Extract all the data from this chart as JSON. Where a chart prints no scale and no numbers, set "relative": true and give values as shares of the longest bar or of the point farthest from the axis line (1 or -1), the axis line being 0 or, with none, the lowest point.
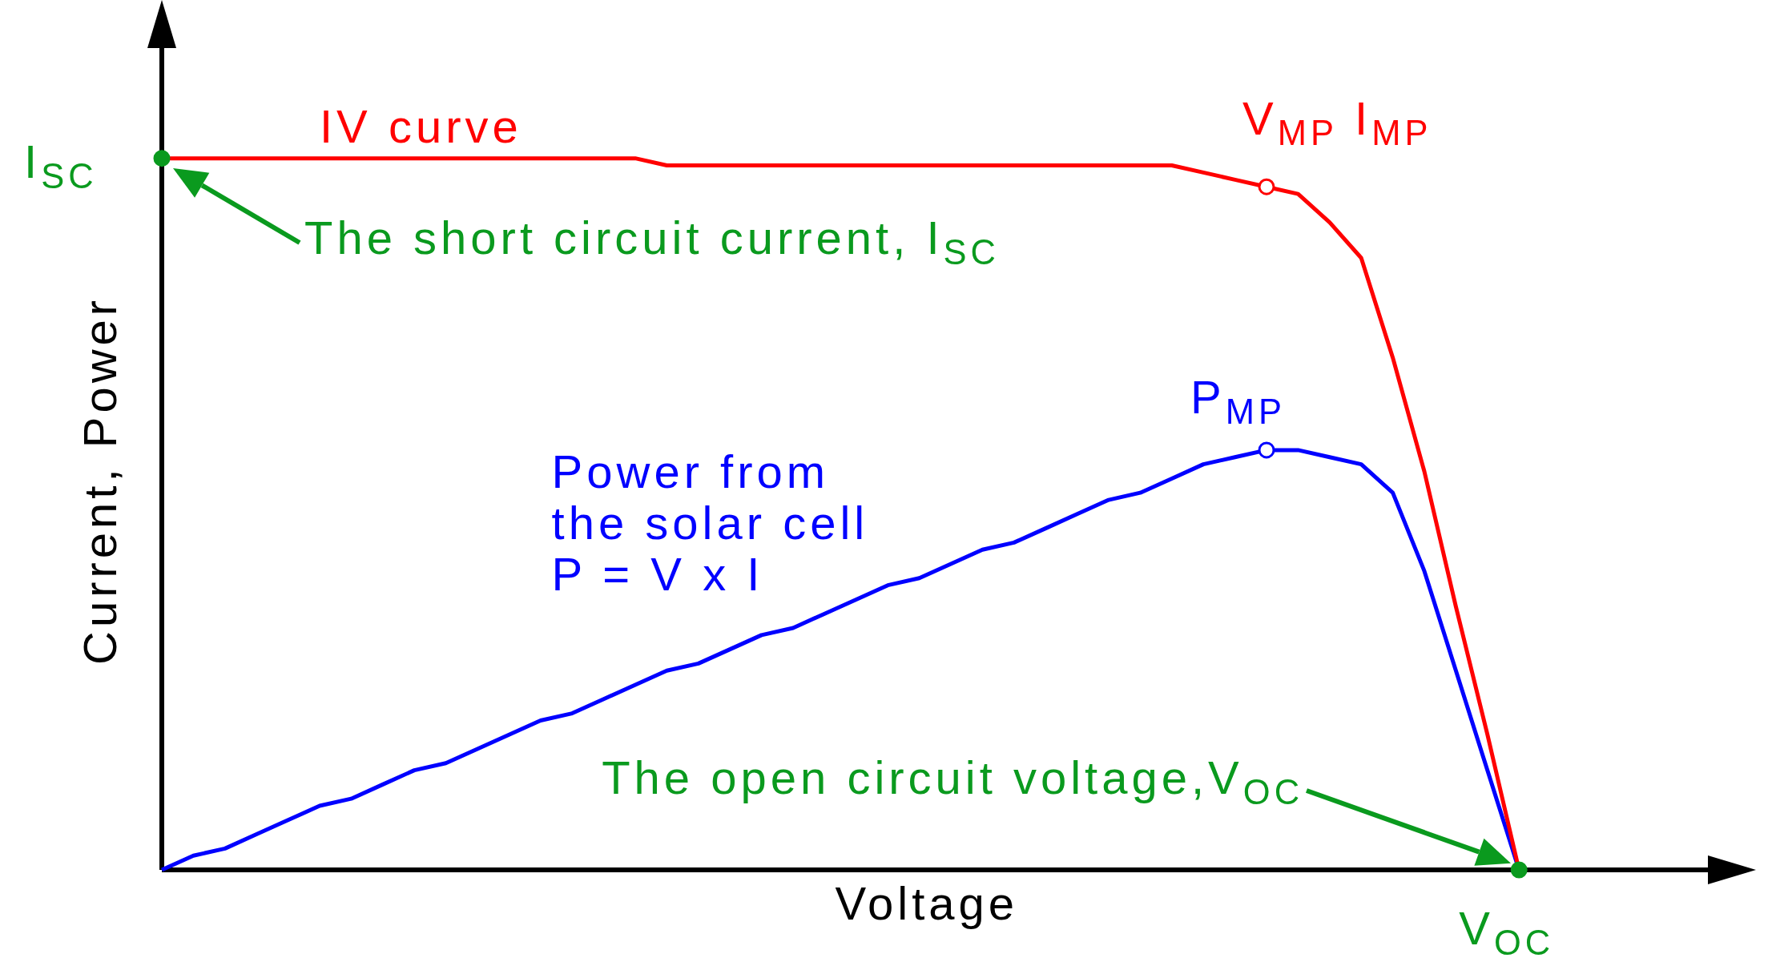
{
  "chart_data": {
    "type": "line",
    "relative": true,
    "xlabel": "Voltage",
    "ylabel": "Current, Power",
    "categories": [
      null,
      null,
      null,
      null,
      null,
      null,
      null,
      null,
      null,
      null,
      null,
      null,
      null,
      null,
      null,
      null,
      null,
      null,
      null,
      null,
      null,
      null,
      null,
      null,
      null,
      null,
      null,
      null,
      null,
      null,
      null,
      null,
      null,
      null,
      null,
      null,
      null,
      null,
      null,
      null,
      null,
      null,
      null,
      null,
      null,
      null,
      null,
      null,
      null,
      null,
      null
    ],
    "series": [
      {
        "name": "IV curve",
        "color": "#ff0000",
        "values": [
          1,
          1,
          1,
          1,
          1,
          1,
          1,
          1,
          1,
          1,
          1,
          1,
          1,
          1,
          1,
          1,
          0.99,
          0.99,
          0.99,
          0.99,
          0.99,
          0.99,
          0.99,
          0.99,
          0.99,
          0.99,
          0.99,
          0.99,
          0.99,
          0.99,
          0.99,
          0.99,
          0.99,
          0.98,
          0.97,
          0.96,
          0.95,
          0.91,
          0.86,
          0.72,
          0.56,
          0.37,
          0.19,
          0,
          null,
          null,
          null,
          null,
          null,
          null,
          null
        ]
      },
      {
        "name": "Power from\nthe solar cell\nP = V x I",
        "color": "#0000ff",
        "values": [
          0,
          0.02,
          0.03,
          0.05,
          0.07,
          0.09,
          0.1,
          0.12,
          0.14,
          0.15,
          0.17,
          0.19,
          0.21,
          0.22,
          0.24,
          0.26,
          0.28,
          0.29,
          0.31,
          0.33,
          0.34,
          0.36,
          0.38,
          0.4,
          0.41,
          0.43,
          0.45,
          0.46,
          0.48,
          0.5,
          0.52,
          0.53,
          0.55,
          0.57,
          0.58,
          0.59,
          0.59,
          0.58,
          0.57,
          0.53,
          0.42,
          0.28,
          0.14,
          0,
          null,
          null,
          null,
          null,
          null,
          null,
          null
        ]
      }
    ],
    "annotations": [
      "I$_{SC}$",
      "The short circuit current, I$_{SC}$",
      "V$_{MP}$ I$_{MP}$",
      "P$_{MP}$",
      "The open circuit voltage,V$_{OC}$",
      "V$_{OC}$"
    ],
    "line_style": "solid"
  }
}
